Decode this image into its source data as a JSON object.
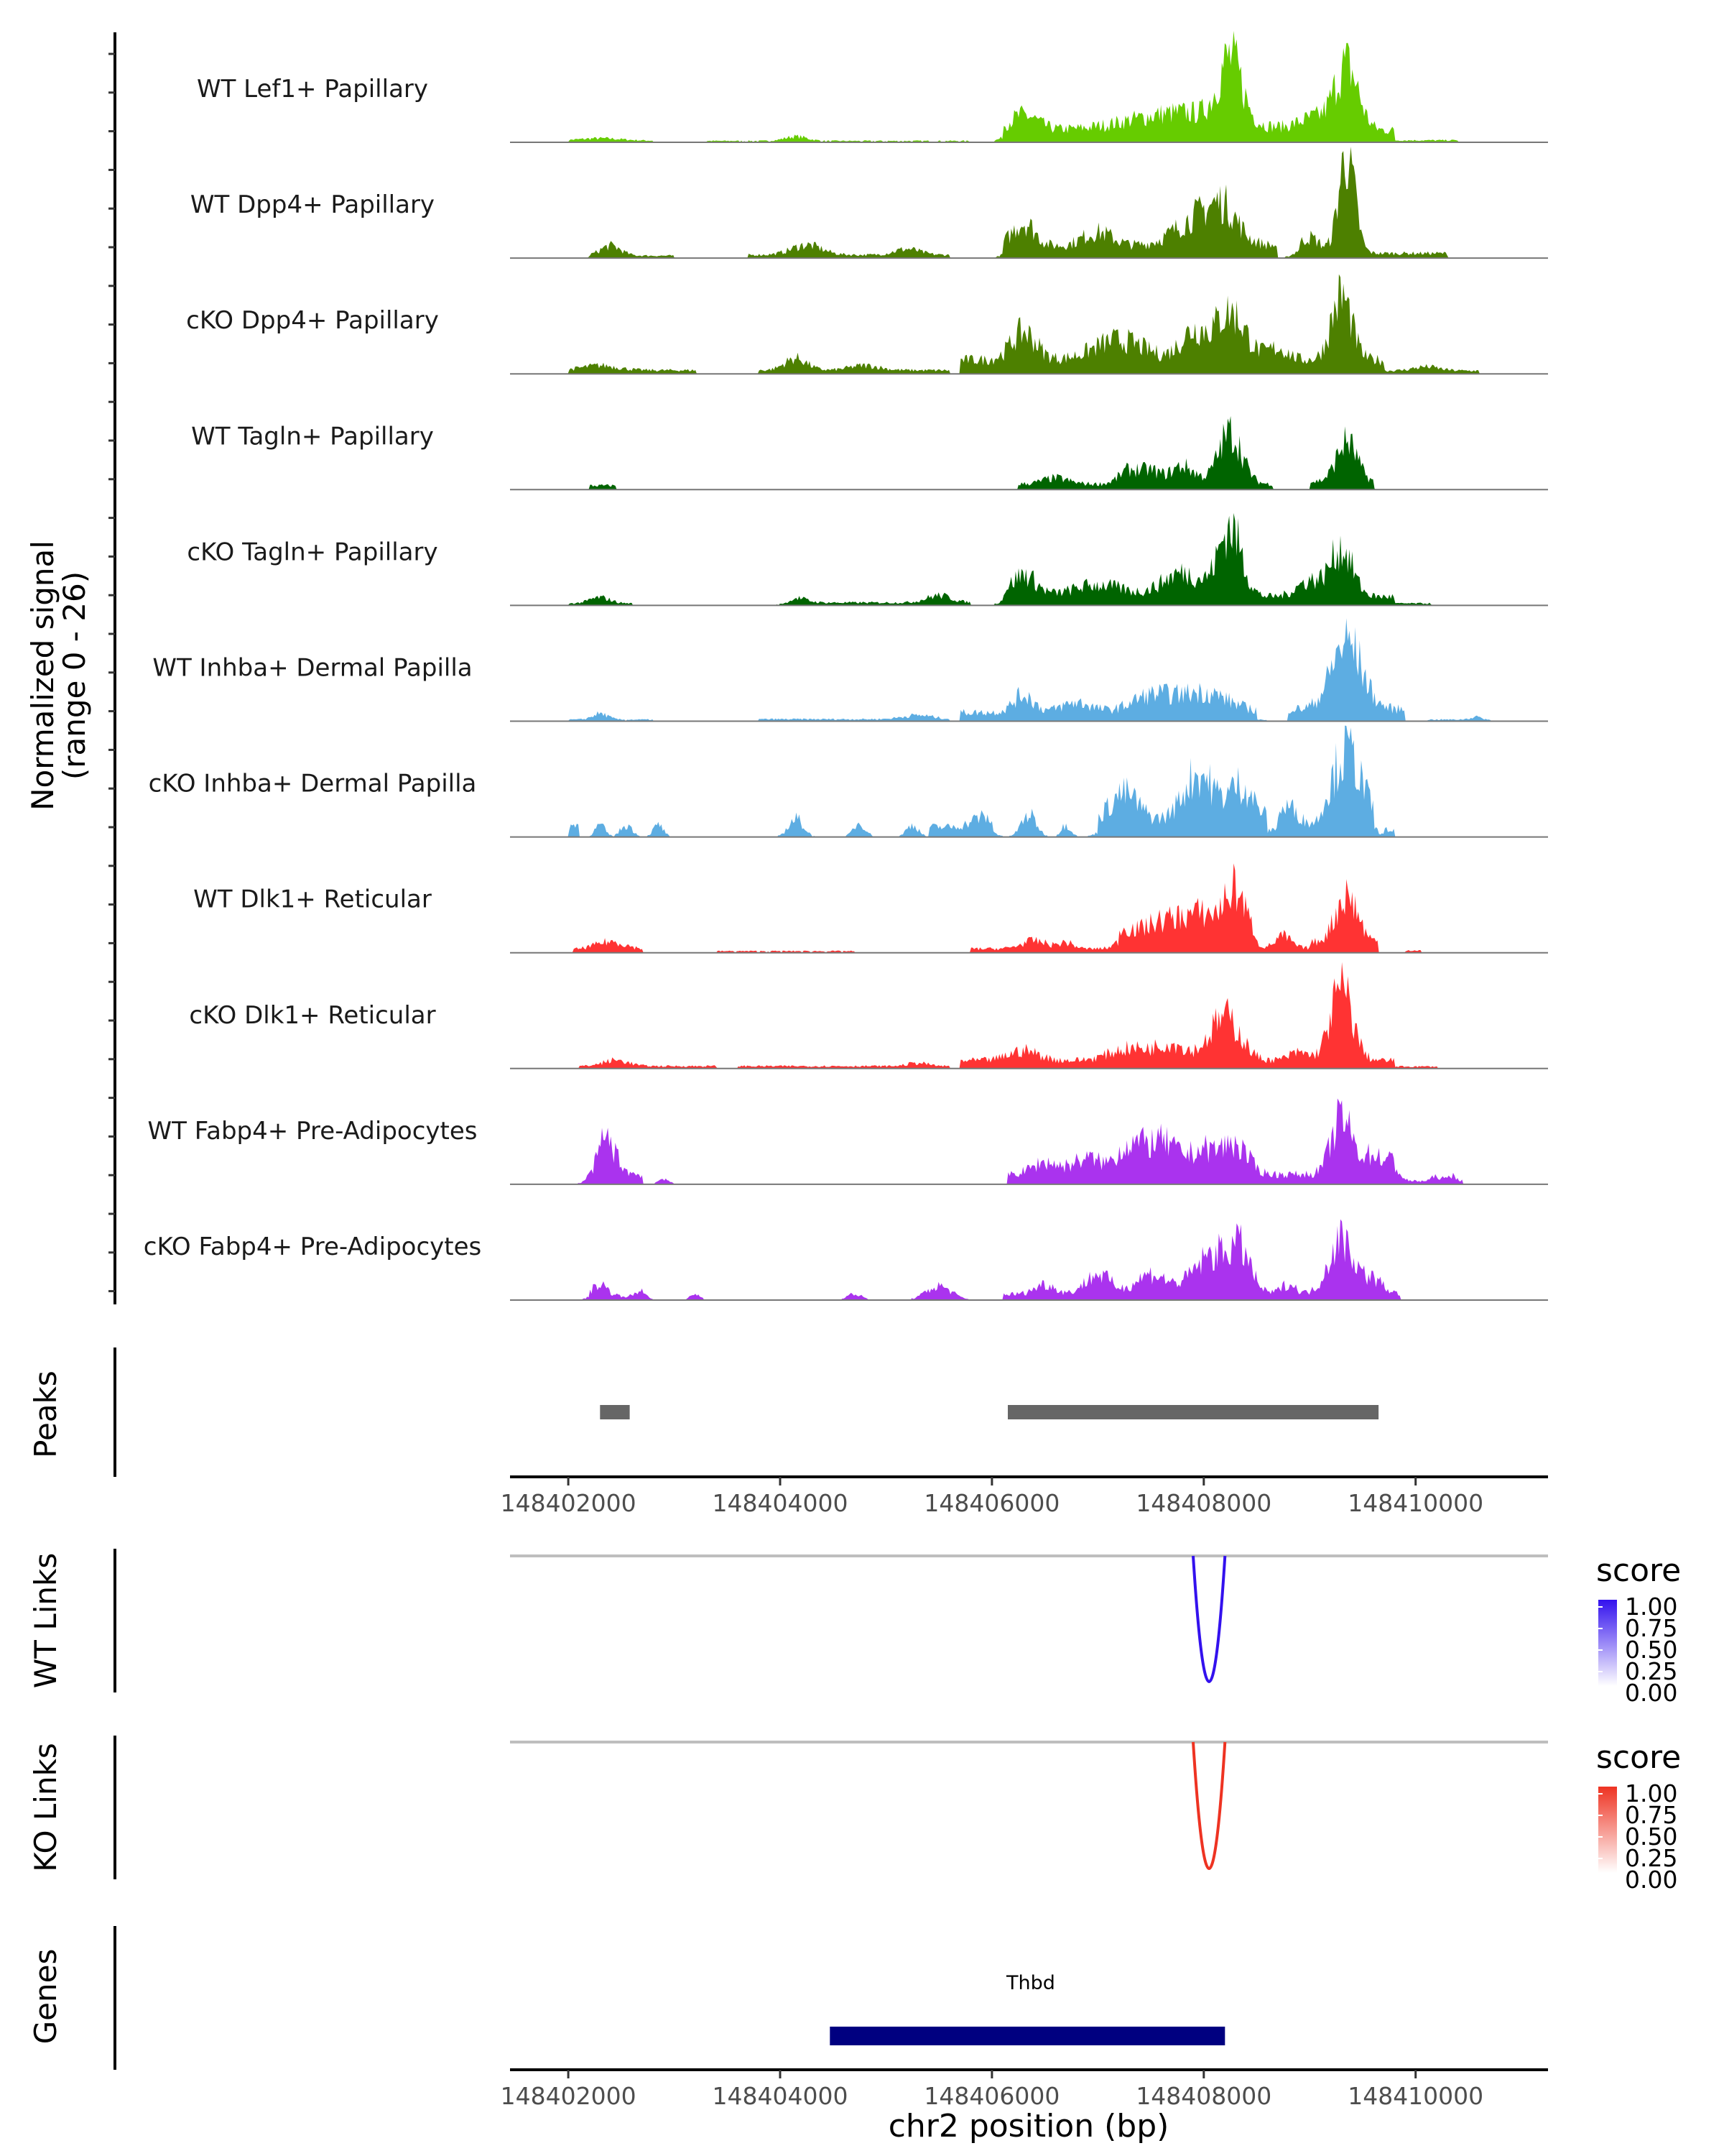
{
  "chart_data": {
    "type": "area",
    "title": "",
    "xlabel": "chr2 position (bp)",
    "x_range": [
      148401450,
      148411250
    ],
    "x_ticks": [
      "148402000",
      "148404000",
      "148406000",
      "148408000",
      "148410000"
    ],
    "signal_ylabel": "Normalized signal",
    "signal_ylabel_range": "(range 0 - 26)",
    "ylim": [
      0,
      26
    ],
    "tracks": [
      {
        "name": "WT Lef1+ Papillary",
        "color": "#66CC00",
        "peaks": [
          [
            148402300,
            0.6,
            420
          ],
          [
            148404150,
            1.1,
            220
          ],
          [
            148406300,
            3.8,
            280
          ],
          [
            148407800,
            4.5,
            1000
          ],
          [
            148408250,
            15.5,
            230
          ],
          [
            148409350,
            16.0,
            230
          ],
          [
            148409050,
            3.0,
            320
          ]
        ],
        "base_ranges": [
          [
            148402000,
            148402800,
            0.4
          ],
          [
            148403300,
            148405800,
            0.35
          ],
          [
            148406100,
            148409800,
            3.0
          ],
          [
            148409800,
            148410400,
            0.5
          ]
        ]
      },
      {
        "name": "WT Dpp4+ Papillary",
        "color": "#4D8000",
        "peaks": [
          [
            148402400,
            2.5,
            200
          ],
          [
            148404250,
            2.5,
            300
          ],
          [
            148405200,
            1.5,
            250
          ],
          [
            148406300,
            6.0,
            220
          ],
          [
            148407000,
            3.5,
            300
          ],
          [
            148408000,
            8.0,
            500
          ],
          [
            148408200,
            5.0,
            250
          ],
          [
            148409350,
            25.0,
            160
          ],
          [
            148409000,
            4.0,
            200
          ]
        ],
        "base_ranges": [
          [
            148402200,
            148403000,
            0.6
          ],
          [
            148403700,
            148405600,
            0.8
          ],
          [
            148406100,
            148408700,
            3.0
          ],
          [
            148408900,
            148410300,
            1.2
          ]
        ]
      },
      {
        "name": "cKO Dpp4+ Papillary",
        "color": "#4D8000",
        "peaks": [
          [
            148402300,
            1.2,
            350
          ],
          [
            148404150,
            3.0,
            220
          ],
          [
            148404800,
            1.2,
            300
          ],
          [
            148406300,
            7.0,
            250
          ],
          [
            148407200,
            5.0,
            500
          ],
          [
            148408250,
            12.0,
            300
          ],
          [
            148407900,
            7.0,
            260
          ],
          [
            148409300,
            16.0,
            200
          ],
          [
            148408700,
            3.0,
            200
          ],
          [
            148410100,
            1.0,
            250
          ]
        ],
        "base_ranges": [
          [
            148402000,
            148403200,
            0.9
          ],
          [
            148403800,
            148405600,
            0.9
          ],
          [
            148405700,
            148409700,
            3.5
          ],
          [
            148409700,
            148410600,
            0.8
          ]
        ]
      },
      {
        "name": "WT Tagln+ Papillary",
        "color": "#006400",
        "peaks": [
          [
            148407300,
            3.5,
            200
          ],
          [
            148407800,
            4.5,
            250
          ],
          [
            148408250,
            13.0,
            230
          ],
          [
            148407500,
            3.0,
            180
          ],
          [
            148409350,
            10.0,
            200
          ],
          [
            148406600,
            1.5,
            250
          ]
        ],
        "base_ranges": [
          [
            148402200,
            148402450,
            1.0
          ],
          [
            148406250,
            148408650,
            1.4
          ],
          [
            148409000,
            148409600,
            2.0
          ]
        ]
      },
      {
        "name": "cKO Tagln+ Papillary",
        "color": "#006400",
        "peaks": [
          [
            148402300,
            1.5,
            200
          ],
          [
            148404150,
            1.2,
            200
          ],
          [
            148405500,
            1.8,
            250
          ],
          [
            148406300,
            5.5,
            250
          ],
          [
            148407000,
            3.0,
            500
          ],
          [
            148407800,
            6.0,
            400
          ],
          [
            148408250,
            17.0,
            230
          ],
          [
            148409300,
            12.0,
            220
          ],
          [
            148409000,
            4.0,
            250
          ]
        ],
        "base_ranges": [
          [
            148402000,
            148402600,
            0.5
          ],
          [
            148404100,
            148405800,
            0.7
          ],
          [
            148406100,
            148409800,
            2.2
          ],
          [
            148409800,
            148410150,
            0.5
          ]
        ]
      },
      {
        "name": "WT Inhba+ Dermal Papilla",
        "color": "#5DADE2",
        "peaks": [
          [
            148402300,
            1.5,
            150
          ],
          [
            148405300,
            1.0,
            300
          ],
          [
            148406300,
            4.5,
            200
          ],
          [
            148406800,
            2.5,
            300
          ],
          [
            148407500,
            4.0,
            400
          ],
          [
            148408000,
            5.0,
            500
          ],
          [
            148409350,
            17.0,
            300
          ],
          [
            148410600,
            0.8,
            150
          ]
        ],
        "base_ranges": [
          [
            148402000,
            148402800,
            0.4
          ],
          [
            148403800,
            148405600,
            0.5
          ],
          [
            148405700,
            148408500,
            2.2
          ],
          [
            148408800,
            148409900,
            3.0
          ],
          [
            148410100,
            148410600,
            0.4
          ]
        ]
      },
      {
        "name": "cKO Inhba+ Dermal Papilla",
        "color": "#5DADE2",
        "peaks": [
          [
            148402300,
            3.0,
            100
          ],
          [
            148402550,
            3.0,
            120
          ],
          [
            148402850,
            3.0,
            100
          ],
          [
            148404150,
            4.5,
            150
          ],
          [
            148404750,
            3.5,
            120
          ],
          [
            148405250,
            3.0,
            120
          ],
          [
            148405900,
            2.5,
            200
          ],
          [
            148406350,
            5.5,
            150
          ],
          [
            148406700,
            3.0,
            100
          ],
          [
            148407250,
            7.0,
            280
          ],
          [
            148407950,
            12.0,
            300
          ],
          [
            148408350,
            9.0,
            250
          ],
          [
            148408800,
            5.0,
            200
          ],
          [
            148409350,
            17.0,
            280
          ]
        ],
        "base_ranges": [
          [
            148402000,
            148402100,
            3.0
          ],
          [
            148405400,
            148406000,
            2.5
          ],
          [
            148407000,
            148408600,
            4.0
          ],
          [
            148408700,
            148409100,
            2.5
          ],
          [
            148409100,
            148409600,
            4.5
          ],
          [
            148409700,
            148409800,
            1.5
          ]
        ]
      },
      {
        "name": "WT Dlk1+ Reticular",
        "color": "#FF3333",
        "peaks": [
          [
            148402400,
            2.0,
            300
          ],
          [
            148406400,
            2.0,
            250
          ],
          [
            148406700,
            1.5,
            150
          ],
          [
            148407250,
            2.0,
            150
          ],
          [
            148407600,
            4.0,
            400
          ],
          [
            148408000,
            6.0,
            400
          ],
          [
            148408300,
            11.0,
            200
          ],
          [
            148408750,
            3.0,
            150
          ],
          [
            148409350,
            12.0,
            220
          ]
        ],
        "base_ranges": [
          [
            148402050,
            148402700,
            0.8
          ],
          [
            148403400,
            148404700,
            0.4
          ],
          [
            148405800,
            148407200,
            1.0
          ],
          [
            148407200,
            148408500,
            3.5
          ],
          [
            148408500,
            148409000,
            1.2
          ],
          [
            148409000,
            148409650,
            2.5
          ],
          [
            148409900,
            148410050,
            0.6
          ]
        ]
      },
      {
        "name": "cKO Dlk1+ Reticular",
        "color": "#FF3333",
        "peaks": [
          [
            148402450,
            1.5,
            250
          ],
          [
            148405300,
            0.8,
            200
          ],
          [
            148406300,
            2.5,
            300
          ],
          [
            148407300,
            3.0,
            400
          ],
          [
            148408200,
            11.0,
            300
          ],
          [
            148407700,
            4.0,
            300
          ],
          [
            148409300,
            18.0,
            220
          ],
          [
            148408900,
            2.0,
            200
          ]
        ],
        "base_ranges": [
          [
            148402100,
            148403400,
            0.6
          ],
          [
            148403600,
            148405600,
            0.6
          ],
          [
            148405700,
            148409800,
            2.0
          ],
          [
            148409800,
            148410200,
            0.5
          ]
        ]
      },
      {
        "name": "WT Fabp4+ Pre-Adipocytes",
        "color": "#AA33EE",
        "peaks": [
          [
            148402350,
            9.0,
            200
          ],
          [
            148402900,
            1.5,
            100
          ],
          [
            148406500,
            3.0,
            250
          ],
          [
            148406900,
            4.0,
            300
          ],
          [
            148407300,
            7.0,
            250
          ],
          [
            148407600,
            8.0,
            300
          ],
          [
            148408000,
            6.0,
            300
          ],
          [
            148408300,
            7.0,
            250
          ],
          [
            148409300,
            14.0,
            200
          ],
          [
            148409600,
            5.0,
            250
          ],
          [
            148409800,
            2.5,
            100
          ],
          [
            148410200,
            1.2,
            100
          ],
          [
            148410350,
            1.5,
            80
          ]
        ],
        "base_ranges": [
          [
            148402300,
            148402700,
            2.5
          ],
          [
            148406150,
            148409800,
            2.5
          ],
          [
            148409800,
            148410450,
            0.8
          ]
        ]
      },
      {
        "name": "cKO Fabp4+ Pre-Adipocytes",
        "color": "#AA33EE",
        "peaks": [
          [
            148402300,
            3.0,
            150
          ],
          [
            148402700,
            1.5,
            100
          ],
          [
            148403200,
            1.5,
            100
          ],
          [
            148404700,
            1.5,
            150
          ],
          [
            148405500,
            3.5,
            250
          ],
          [
            148406500,
            2.5,
            200
          ],
          [
            148407000,
            5.0,
            250
          ],
          [
            148407500,
            5.0,
            300
          ],
          [
            148408100,
            10.0,
            400
          ],
          [
            148408350,
            8.0,
            200
          ],
          [
            148408800,
            2.5,
            150
          ],
          [
            148409300,
            14.0,
            250
          ],
          [
            148409600,
            3.5,
            200
          ]
        ],
        "base_ranges": [
          [
            148402200,
            148402750,
            1.0
          ],
          [
            148406100,
            148409850,
            1.5
          ]
        ]
      }
    ],
    "peaks_track": {
      "label": "Peaks",
      "regions": [
        [
          148402300,
          148402580
        ],
        [
          148406150,
          148409650
        ]
      ],
      "color": "#666666"
    },
    "links": [
      {
        "label": "WT Links",
        "color": "#3311EE",
        "from": 148407900,
        "to": 148408200,
        "score": 1.0
      },
      {
        "label": "KO Links",
        "color": "#EE3322",
        "from": 148407900,
        "to": 148408200,
        "score": 1.0
      }
    ],
    "legend": {
      "title": "score",
      "ticks": [
        "1.00",
        "0.75",
        "0.50",
        "0.25",
        "0.00"
      ],
      "low_color": "#FFFFFF"
    },
    "genes": {
      "label": "Genes",
      "items": [
        {
          "name": "Thbd",
          "start": 148404470,
          "end": 148408200,
          "color": "#000080"
        }
      ]
    }
  }
}
